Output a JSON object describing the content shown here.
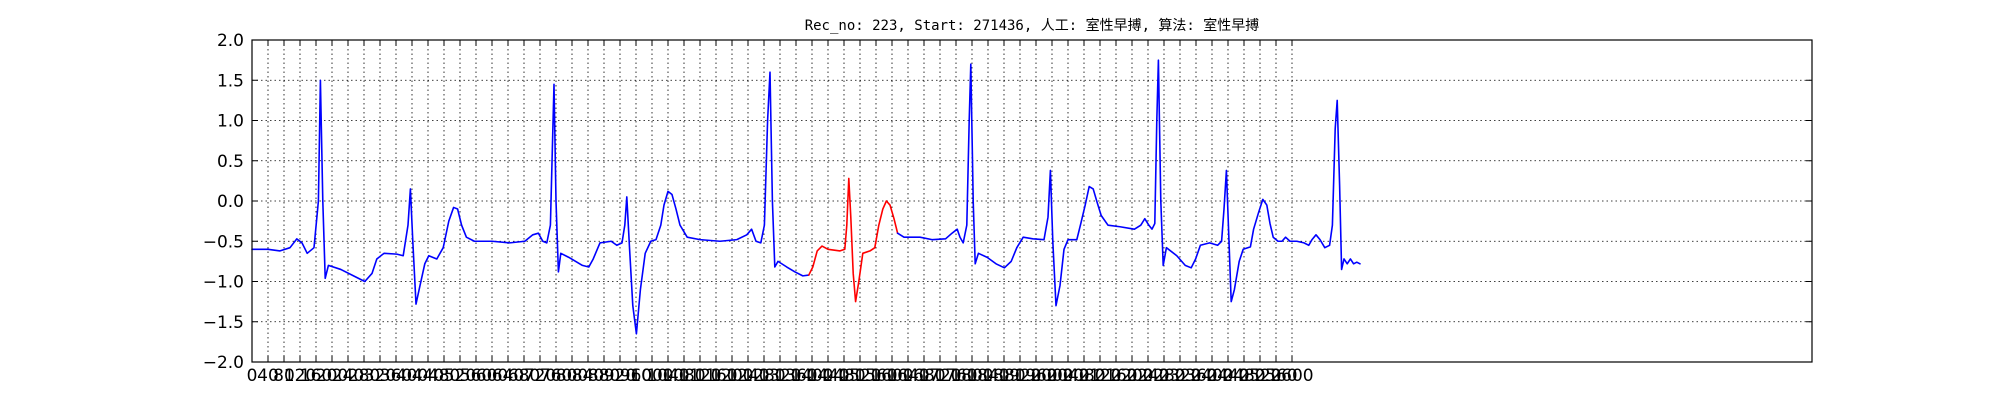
{
  "chart_data": {
    "type": "line",
    "title": "Rec_no: 223, Start: 271436, 人工: 室性早搏, 算法: 室性早搏",
    "xlabel": "",
    "ylabel": "",
    "xlim": [
      0,
      3900
    ],
    "ylim": [
      -2.0,
      2.0
    ],
    "x_step": 40,
    "x_ticks": [
      0,
      40,
      80,
      120,
      160,
      200,
      240,
      280,
      320,
      360,
      400,
      440,
      480,
      520,
      560,
      600,
      640,
      680,
      720,
      760,
      800,
      840,
      880,
      920,
      960,
      1000,
      1040,
      1080,
      1120,
      1160,
      1200,
      1240,
      1280,
      1320,
      1360,
      1400,
      1440,
      1480,
      1520,
      1560,
      1600,
      1640,
      1680,
      1720,
      1760,
      1800,
      1840,
      1880,
      1920,
      1960,
      2000,
      2040,
      2080,
      2120,
      2160,
      2200,
      2240,
      2280,
      2320,
      2360,
      2400,
      2440,
      2480,
      2520,
      2560,
      2600
    ],
    "x_tick_labels": [
      "0",
      "40",
      "80",
      "120",
      "160",
      "200",
      "240",
      "280",
      "320",
      "360",
      "400",
      "440",
      "480",
      "520",
      "560",
      "600",
      "640",
      "680",
      "720",
      "760",
      "800",
      "840",
      "880",
      "920",
      "960",
      "1000",
      "1040",
      "1080",
      "1120",
      "1160",
      "1200",
      "1240",
      "1280",
      "1320",
      "1360",
      "1400",
      "1440",
      "1480",
      "1520",
      "1560",
      "1600",
      "1640",
      "1680",
      "1720",
      "1760",
      "1800",
      "1840",
      "1880",
      "1920",
      "1960",
      "2000",
      "2040",
      "2080",
      "2120",
      "2160",
      "2200",
      "2240",
      "2280",
      "2320",
      "2360",
      "2400",
      "2440",
      "2480",
      "2520",
      "2560",
      "2600"
    ],
    "y_ticks": [
      -2.0,
      -1.5,
      -1.0,
      -0.5,
      0.0,
      0.5,
      1.0,
      1.5,
      2.0
    ],
    "y_tick_labels": [
      "−2.0",
      "−1.5",
      "−1.0",
      "−0.5",
      "0.0",
      "0.5",
      "1.0",
      "1.5",
      "2.0"
    ],
    "grid": true,
    "grid_style": "dotted",
    "series": [
      {
        "color": "#0000ff",
        "points": [
          [
            0,
            -0.6
          ],
          [
            40,
            -0.6
          ],
          [
            70,
            -0.62
          ],
          [
            95,
            -0.58
          ],
          [
            112,
            -0.47
          ],
          [
            125,
            -0.52
          ],
          [
            138,
            -0.65
          ],
          [
            155,
            -0.58
          ],
          [
            166,
            0.0
          ],
          [
            171,
            1.5
          ],
          [
            177,
            0.0
          ],
          [
            183,
            -0.96
          ],
          [
            191,
            -0.8
          ],
          [
            222,
            -0.85
          ],
          [
            262,
            -0.95
          ],
          [
            282,
            -1.0
          ],
          [
            300,
            -0.9
          ],
          [
            312,
            -0.72
          ],
          [
            330,
            -0.65
          ],
          [
            362,
            -0.66
          ],
          [
            378,
            -0.68
          ],
          [
            390,
            -0.3
          ],
          [
            396,
            0.15
          ],
          [
            402,
            -0.5
          ],
          [
            410,
            -1.28
          ],
          [
            420,
            -1.05
          ],
          [
            432,
            -0.78
          ],
          [
            442,
            -0.68
          ],
          [
            462,
            -0.72
          ],
          [
            478,
            -0.58
          ],
          [
            492,
            -0.25
          ],
          [
            504,
            -0.08
          ],
          [
            514,
            -0.1
          ],
          [
            524,
            -0.3
          ],
          [
            536,
            -0.45
          ],
          [
            556,
            -0.5
          ],
          [
            600,
            -0.5
          ],
          [
            644,
            -0.52
          ],
          [
            682,
            -0.5
          ],
          [
            702,
            -0.42
          ],
          [
            716,
            -0.4
          ],
          [
            727,
            -0.5
          ],
          [
            737,
            -0.52
          ],
          [
            746,
            -0.3
          ],
          [
            755,
            1.45
          ],
          [
            760,
            0.0
          ],
          [
            766,
            -0.88
          ],
          [
            772,
            -0.65
          ],
          [
            792,
            -0.7
          ],
          [
            826,
            -0.8
          ],
          [
            842,
            -0.82
          ],
          [
            853,
            -0.72
          ],
          [
            870,
            -0.52
          ],
          [
            898,
            -0.5
          ],
          [
            912,
            -0.55
          ],
          [
            925,
            -0.52
          ],
          [
            932,
            -0.3
          ],
          [
            937,
            0.05
          ],
          [
            944,
            -0.6
          ],
          [
            952,
            -1.3
          ],
          [
            961,
            -1.65
          ],
          [
            971,
            -1.1
          ],
          [
            983,
            -0.65
          ],
          [
            997,
            -0.5
          ],
          [
            1010,
            -0.48
          ],
          [
            1022,
            -0.3
          ],
          [
            1030,
            -0.05
          ],
          [
            1040,
            0.12
          ],
          [
            1050,
            0.08
          ],
          [
            1060,
            -0.1
          ],
          [
            1070,
            -0.3
          ],
          [
            1088,
            -0.45
          ],
          [
            1120,
            -0.48
          ],
          [
            1170,
            -0.5
          ],
          [
            1212,
            -0.48
          ],
          [
            1237,
            -0.42
          ],
          [
            1249,
            -0.35
          ],
          [
            1260,
            -0.5
          ],
          [
            1272,
            -0.52
          ],
          [
            1281,
            -0.3
          ],
          [
            1289,
            1.0
          ],
          [
            1295,
            1.6
          ],
          [
            1301,
            0.0
          ],
          [
            1307,
            -0.82
          ],
          [
            1315,
            -0.75
          ],
          [
            1337,
            -0.82
          ],
          [
            1357,
            -0.88
          ],
          [
            1377,
            -0.93
          ],
          [
            1392,
            -0.92
          ]
        ]
      },
      {
        "color": "#ff0000",
        "points": [
          [
            1392,
            -0.92
          ],
          [
            1402,
            -0.82
          ],
          [
            1413,
            -0.62
          ],
          [
            1425,
            -0.56
          ],
          [
            1440,
            -0.6
          ],
          [
            1470,
            -0.62
          ],
          [
            1482,
            -0.6
          ],
          [
            1487,
            -0.3
          ],
          [
            1492,
            0.28
          ],
          [
            1497,
            -0.2
          ],
          [
            1503,
            -0.9
          ],
          [
            1509,
            -1.25
          ],
          [
            1517,
            -1.0
          ],
          [
            1527,
            -0.65
          ],
          [
            1545,
            -0.62
          ],
          [
            1557,
            -0.58
          ],
          [
            1567,
            -0.3
          ],
          [
            1577,
            -0.1
          ],
          [
            1586,
            0.0
          ],
          [
            1595,
            -0.05
          ],
          [
            1605,
            -0.22
          ],
          [
            1614,
            -0.4
          ]
        ]
      },
      {
        "color": "#0000ff",
        "points": [
          [
            1614,
            -0.4
          ],
          [
            1630,
            -0.45
          ],
          [
            1670,
            -0.45
          ],
          [
            1700,
            -0.48
          ],
          [
            1734,
            -0.47
          ],
          [
            1750,
            -0.4
          ],
          [
            1763,
            -0.35
          ],
          [
            1770,
            -0.45
          ],
          [
            1778,
            -0.52
          ],
          [
            1787,
            -0.3
          ],
          [
            1793,
            1.0
          ],
          [
            1797,
            1.7
          ],
          [
            1803,
            0.0
          ],
          [
            1808,
            -0.78
          ],
          [
            1816,
            -0.65
          ],
          [
            1838,
            -0.7
          ],
          [
            1860,
            -0.78
          ],
          [
            1881,
            -0.83
          ],
          [
            1898,
            -0.75
          ],
          [
            1912,
            -0.58
          ],
          [
            1928,
            -0.45
          ],
          [
            1952,
            -0.47
          ],
          [
            1980,
            -0.48
          ],
          [
            1990,
            -0.2
          ],
          [
            1996,
            0.38
          ],
          [
            2002,
            -0.5
          ],
          [
            2010,
            -1.3
          ],
          [
            2020,
            -1.05
          ],
          [
            2030,
            -0.6
          ],
          [
            2040,
            -0.48
          ],
          [
            2062,
            -0.48
          ],
          [
            2072,
            -0.28
          ],
          [
            2083,
            -0.05
          ],
          [
            2093,
            0.18
          ],
          [
            2103,
            0.15
          ],
          [
            2113,
            -0.02
          ],
          [
            2123,
            -0.18
          ],
          [
            2140,
            -0.3
          ],
          [
            2170,
            -0.32
          ],
          [
            2206,
            -0.35
          ],
          [
            2222,
            -0.3
          ],
          [
            2232,
            -0.22
          ],
          [
            2242,
            -0.3
          ],
          [
            2250,
            -0.35
          ],
          [
            2257,
            -0.28
          ],
          [
            2262,
            1.0
          ],
          [
            2266,
            1.75
          ],
          [
            2272,
            0.0
          ],
          [
            2278,
            -0.8
          ],
          [
            2286,
            -0.58
          ],
          [
            2312,
            -0.68
          ],
          [
            2333,
            -0.8
          ],
          [
            2348,
            -0.83
          ],
          [
            2359,
            -0.72
          ],
          [
            2371,
            -0.55
          ],
          [
            2394,
            -0.52
          ],
          [
            2414,
            -0.55
          ],
          [
            2424,
            -0.5
          ],
          [
            2430,
            -0.1
          ],
          [
            2436,
            0.38
          ],
          [
            2441,
            -0.3
          ],
          [
            2448,
            -1.25
          ],
          [
            2456,
            -1.1
          ],
          [
            2468,
            -0.75
          ],
          [
            2478,
            -0.6
          ],
          [
            2496,
            -0.57
          ],
          [
            2504,
            -0.35
          ],
          [
            2516,
            -0.15
          ],
          [
            2527,
            0.02
          ],
          [
            2537,
            -0.05
          ],
          [
            2545,
            -0.28
          ],
          [
            2553,
            -0.45
          ],
          [
            2565,
            -0.5
          ],
          [
            2575,
            -0.5
          ],
          [
            2584,
            -0.45
          ],
          [
            2595,
            -0.5
          ],
          [
            2612,
            -0.5
          ],
          [
            2630,
            -0.52
          ],
          [
            2642,
            -0.55
          ],
          [
            2650,
            -0.48
          ],
          [
            2660,
            -0.42
          ],
          [
            2670,
            -0.48
          ],
          [
            2682,
            -0.58
          ],
          [
            2694,
            -0.55
          ],
          [
            2701,
            -0.3
          ],
          [
            2708,
            0.9
          ],
          [
            2713,
            1.25
          ],
          [
            2719,
            0.2
          ],
          [
            2724,
            -0.85
          ],
          [
            2730,
            -0.72
          ],
          [
            2738,
            -0.78
          ],
          [
            2746,
            -0.72
          ],
          [
            2754,
            -0.78
          ],
          [
            2762,
            -0.76
          ],
          [
            2770,
            -0.78
          ]
        ]
      }
    ]
  }
}
